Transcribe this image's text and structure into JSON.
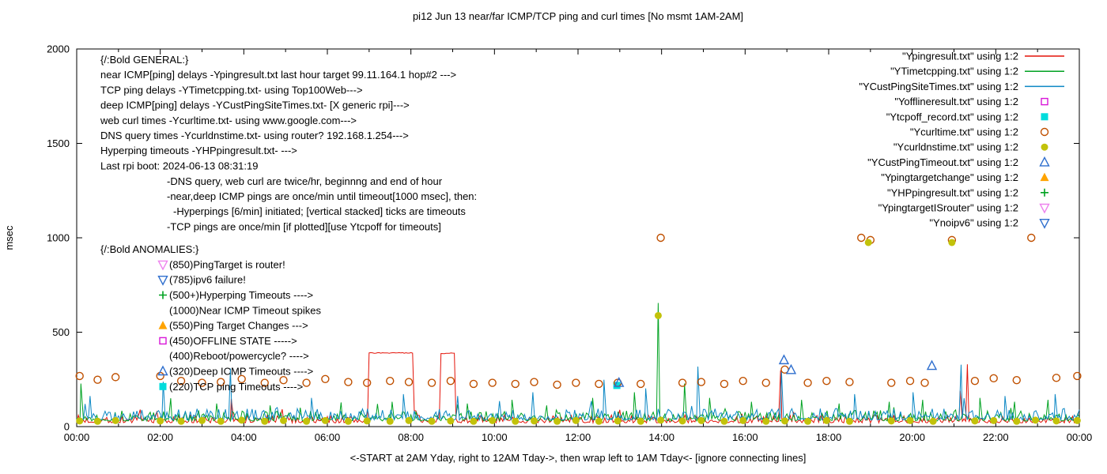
{
  "title": "pi12 Jun 13  near/far ICMP/TCP ping and curl times [No msmt 1AM-2AM]",
  "x_axis_label": "<-START at 2AM Yday, right to 12AM Tday->, then wrap left to 1AM Tday<- [ignore connecting lines]",
  "y_axis_label": "msec",
  "annotations": {
    "general_title": "{/:Bold GENERAL:}",
    "general_lines": [
      "near ICMP[ping] delays -Ypingresult.txt last hour target 99.11.164.1 hop#2 --->",
      "TCP ping delays -YTimetcpping.txt- using Top100Web--->",
      "deep ICMP[ping] delays -YCustPingSiteTimes.txt- [X generic rpi]--->",
      "web curl times -Ycurltime.txt- using www.google.com--->",
      "DNS query times -Ycurldnstime.txt- using router? 192.168.1.254--->",
      "Hyperping timeouts -YHPpingresult.txt- --->",
      "Last rpi boot: 2024-06-13 08:31:19"
    ],
    "general_detail": [
      {
        "text": "-DNS query, web curl are twice/hr, beginnng and end of hour",
        "indent": 0
      },
      {
        "text": "-near,deep ICMP pings are once/min until timeout[1000 msec], then:",
        "indent": 0
      },
      {
        "text": "-Hyperpings [6/min] initiated; [vertical stacked] ticks are timeouts",
        "indent": 1
      },
      {
        "text": "-TCP pings are once/min [if plotted][use Ytcpoff for timeouts]",
        "indent": 0
      }
    ],
    "anomalies_title": "{/:Bold ANOMALIES:}",
    "anomalies": [
      {
        "marker": "nabla-open",
        "color": "#ee82ee",
        "text": "(850)PingTarget is router!"
      },
      {
        "marker": "nabla-open",
        "color": "#2f6fce",
        "text": "(785)ipv6 failure!"
      },
      {
        "marker": "plus",
        "color": "#00a221",
        "text": "(500+)Hyperping Timeouts ---->"
      },
      {
        "marker": "none",
        "color": "",
        "text": "(1000)Near ICMP Timeout spikes"
      },
      {
        "marker": "triangle-filled",
        "color": "#ffa300",
        "text": "(550)Ping Target Changes --->"
      },
      {
        "marker": "square-open",
        "color": "#d816d8",
        "text": "(450)OFFLINE STATE ----->"
      },
      {
        "marker": "none",
        "color": "",
        "text": "(400)Reboot/powercycle? ---->"
      },
      {
        "marker": "triangle-open",
        "color": "#2f6fce",
        "text": "(320)Deep ICMP Timeouts ---->"
      },
      {
        "marker": "square-filled",
        "color": "#00dcdc",
        "text": "(220)TCP ping Timeouts ---->"
      }
    ]
  },
  "chart_data": {
    "type": "line",
    "x": {
      "range": [
        0,
        24
      ],
      "tick_labels": [
        "00:00",
        "02:00",
        "04:00",
        "06:00",
        "08:00",
        "10:00",
        "12:00",
        "14:00",
        "16:00",
        "18:00",
        "20:00",
        "22:00",
        "00:00"
      ],
      "minor_every_hours": 1
    },
    "y": {
      "label": "msec",
      "range": [
        0,
        2000
      ],
      "ticks": [
        0,
        500,
        1000,
        1500,
        2000
      ]
    },
    "legend_position": "top-right",
    "grid": false,
    "series": [
      {
        "name": "\"Ypingresult.txt\" using 1:2",
        "kind": "line",
        "color": "#e41309",
        "baseline": 20,
        "noise": 14,
        "seed": 7,
        "plateaus": [
          [
            6.98,
            8.07,
            390
          ],
          [
            8.7,
            9.07,
            388
          ]
        ],
        "spikes": [
          [
            3.7,
            148
          ],
          [
            16.85,
            298
          ],
          [
            21.15,
            190
          ],
          [
            21.32,
            330
          ]
        ]
      },
      {
        "name": "\"YTimetcpping.txt\" using 1:2",
        "kind": "line",
        "color": "#00a221",
        "baseline": 30,
        "noise": 18,
        "seed": 13,
        "plateaus": [],
        "spikes": [
          [
            0.1,
            228
          ],
          [
            2.25,
            150
          ],
          [
            3.35,
            122
          ],
          [
            4.63,
            112
          ],
          [
            5.35,
            100
          ],
          [
            6.33,
            128
          ],
          [
            7.55,
            132
          ],
          [
            9.35,
            122
          ],
          [
            10.42,
            142
          ],
          [
            11.25,
            112
          ],
          [
            12.35,
            152
          ],
          [
            13.35,
            182
          ],
          [
            13.92,
            655
          ],
          [
            14.55,
            228
          ],
          [
            15.15,
            152
          ],
          [
            16.15,
            132
          ],
          [
            17.35,
            142
          ],
          [
            18.25,
            122
          ],
          [
            19.45,
            132
          ],
          [
            20.25,
            142
          ],
          [
            21.62,
            152
          ],
          [
            22.45,
            132
          ],
          [
            23.25,
            142
          ]
        ]
      },
      {
        "name": "\"YCustPingSiteTimes.txt\" using 1:2",
        "kind": "line",
        "color": "#0b87c4",
        "baseline": 35,
        "noise": 20,
        "seed": 29,
        "plateaus": [],
        "spikes": [
          [
            0.32,
            162
          ],
          [
            2.07,
            238
          ],
          [
            3.68,
            308
          ],
          [
            5.62,
            152
          ],
          [
            7.82,
            172
          ],
          [
            9.12,
            162
          ],
          [
            10.92,
            182
          ],
          [
            12.62,
            248
          ],
          [
            13.62,
            202
          ],
          [
            14.87,
            318
          ],
          [
            16.87,
            298
          ],
          [
            18.62,
            172
          ],
          [
            20.02,
            182
          ],
          [
            21.17,
            328
          ],
          [
            22.22,
            162
          ],
          [
            23.42,
            172
          ]
        ]
      },
      {
        "name": "\"Yofflineresult.txt\" using 1:2",
        "kind": "scatter",
        "marker": "square-open",
        "color": "#d816d8",
        "points": []
      },
      {
        "name": "\"Ytcpoff_record.txt\" using 1:2",
        "kind": "scatter",
        "marker": "square-filled",
        "color": "#00dcdc",
        "points": [
          [
            12.93,
            218
          ]
        ]
      },
      {
        "name": "\"Ycurltime.txt\" using 1:2",
        "kind": "scatter",
        "marker": "circle-open",
        "color": "#c05000",
        "points": [
          [
            0.07,
            268
          ],
          [
            0.5,
            248
          ],
          [
            0.93,
            262
          ],
          [
            2.0,
            268
          ],
          [
            2.5,
            242
          ],
          [
            3.0,
            232
          ],
          [
            3.45,
            236
          ],
          [
            3.95,
            252
          ],
          [
            4.5,
            232
          ],
          [
            4.95,
            246
          ],
          [
            5.5,
            232
          ],
          [
            5.95,
            252
          ],
          [
            6.5,
            236
          ],
          [
            6.95,
            232
          ],
          [
            7.5,
            242
          ],
          [
            7.95,
            236
          ],
          [
            8.5,
            232
          ],
          [
            8.95,
            242
          ],
          [
            9.5,
            226
          ],
          [
            9.95,
            232
          ],
          [
            10.5,
            226
          ],
          [
            10.95,
            236
          ],
          [
            11.5,
            222
          ],
          [
            11.95,
            232
          ],
          [
            12.5,
            226
          ],
          [
            12.95,
            232
          ],
          [
            13.5,
            226
          ],
          [
            13.98,
            1000
          ],
          [
            14.5,
            232
          ],
          [
            14.95,
            236
          ],
          [
            15.5,
            226
          ],
          [
            15.95,
            242
          ],
          [
            16.5,
            232
          ],
          [
            16.95,
            302
          ],
          [
            17.5,
            232
          ],
          [
            17.95,
            242
          ],
          [
            18.5,
            236
          ],
          [
            18.78,
            1000
          ],
          [
            19.0,
            988
          ],
          [
            19.5,
            232
          ],
          [
            19.95,
            242
          ],
          [
            20.3,
            232
          ],
          [
            20.95,
            988
          ],
          [
            21.5,
            242
          ],
          [
            21.95,
            256
          ],
          [
            22.5,
            246
          ],
          [
            22.85,
            1000
          ],
          [
            23.45,
            258
          ],
          [
            23.95,
            268
          ]
        ]
      },
      {
        "name": "\"Ycurldnstime.txt\" using 1:2",
        "kind": "scatter",
        "marker": "circle-filled",
        "color": "#c2c20a",
        "points": [
          [
            0.07,
            30
          ],
          [
            0.5,
            28
          ],
          [
            0.93,
            32
          ],
          [
            2.0,
            30
          ],
          [
            2.5,
            28
          ],
          [
            3.0,
            32
          ],
          [
            3.45,
            28
          ],
          [
            3.95,
            34
          ],
          [
            4.5,
            28
          ],
          [
            4.95,
            32
          ],
          [
            5.5,
            28
          ],
          [
            5.95,
            32
          ],
          [
            6.5,
            28
          ],
          [
            6.95,
            30
          ],
          [
            7.5,
            28
          ],
          [
            7.95,
            32
          ],
          [
            8.5,
            28
          ],
          [
            8.95,
            30
          ],
          [
            9.5,
            28
          ],
          [
            9.95,
            32
          ],
          [
            10.5,
            28
          ],
          [
            10.95,
            30
          ],
          [
            11.5,
            28
          ],
          [
            11.95,
            32
          ],
          [
            12.5,
            28
          ],
          [
            12.95,
            30
          ],
          [
            13.5,
            28
          ],
          [
            13.92,
            588
          ],
          [
            13.98,
            34
          ],
          [
            14.5,
            30
          ],
          [
            14.95,
            32
          ],
          [
            15.5,
            28
          ],
          [
            15.95,
            32
          ],
          [
            16.5,
            28
          ],
          [
            16.95,
            30
          ],
          [
            17.5,
            28
          ],
          [
            17.95,
            32
          ],
          [
            18.5,
            28
          ],
          [
            18.95,
            975
          ],
          [
            19.5,
            30
          ],
          [
            19.95,
            32
          ],
          [
            20.5,
            28
          ],
          [
            20.95,
            975
          ],
          [
            21.5,
            30
          ],
          [
            21.95,
            32
          ],
          [
            22.5,
            28
          ],
          [
            22.95,
            34
          ],
          [
            23.45,
            30
          ],
          [
            23.95,
            32
          ]
        ]
      },
      {
        "name": "\"YCustPingTimeout.txt\" using 1:2",
        "kind": "scatter",
        "marker": "triangle-open",
        "color": "#2f6fce",
        "points": [
          [
            12.98,
            232
          ],
          [
            16.93,
            352
          ],
          [
            17.1,
            300
          ],
          [
            20.47,
            322
          ]
        ]
      },
      {
        "name": "\"Ypingtargetchange\" using 1:2",
        "kind": "scatter",
        "marker": "triangle-filled",
        "color": "#ffa300",
        "points": []
      },
      {
        "name": "\"YHPpingresult.txt\" using 1:2",
        "kind": "scatter",
        "marker": "plus",
        "color": "#00a221",
        "points": []
      },
      {
        "name": "\"YpingtargetISrouter\" using 1:2",
        "kind": "scatter",
        "marker": "nabla-open",
        "color": "#ee82ee",
        "points": []
      },
      {
        "name": "\"Ynoipv6\" using 1:2",
        "kind": "scatter",
        "marker": "nabla-open",
        "color": "#2f6fce",
        "points": []
      }
    ]
  }
}
